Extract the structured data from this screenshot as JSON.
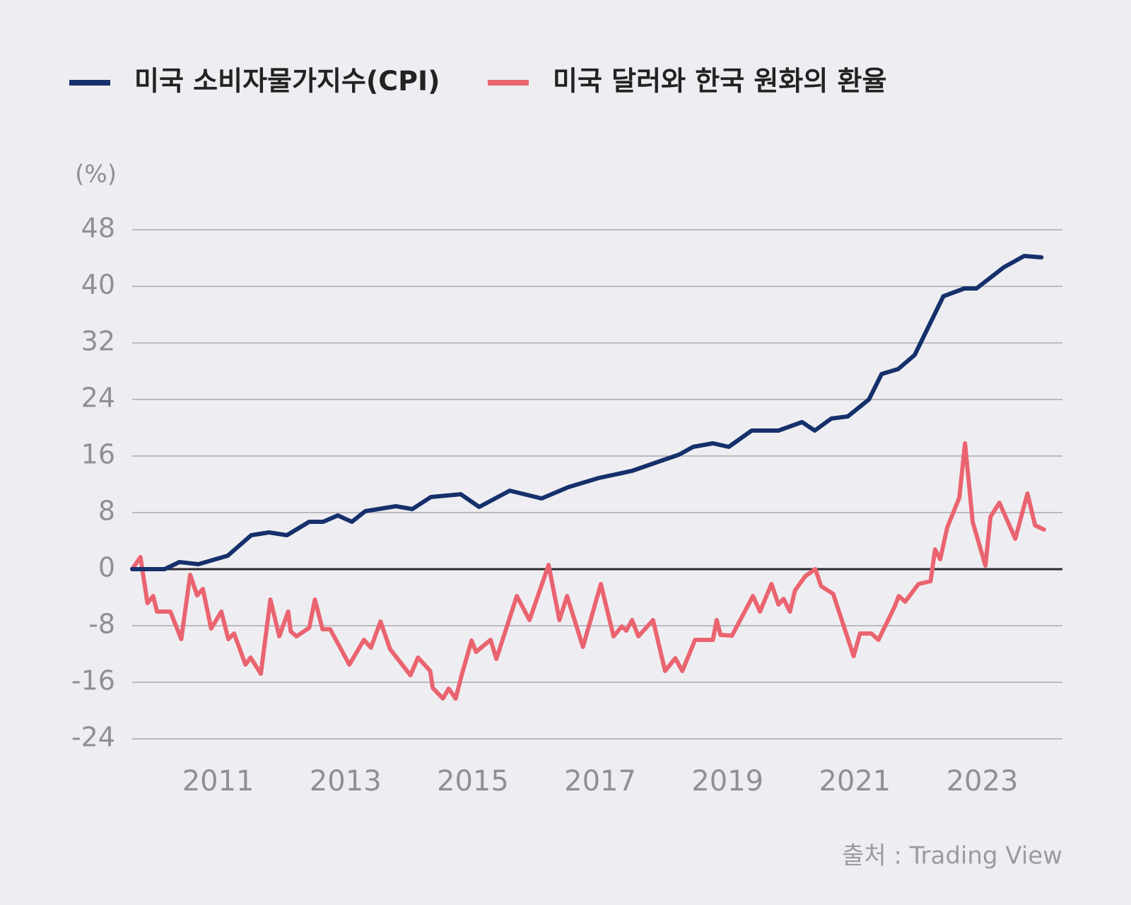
{
  "chart_data": {
    "type": "line",
    "y_unit_label": "(%)",
    "source": "출처 : Trading View",
    "xlim": [
      2009.65,
      2024.26
    ],
    "xticks": [
      2011,
      2013,
      2015,
      2017,
      2019,
      2021,
      2023
    ],
    "ylim": [
      -24,
      48
    ],
    "yticks": [
      -24,
      -16,
      -8,
      0,
      8,
      16,
      24,
      32,
      40,
      48
    ],
    "grid": true,
    "legend": "top",
    "series": [
      {
        "name": "미국 소비자물가지수(CPI)",
        "color": "#15306b",
        "x": [
          2009.65,
          2010.16,
          2010.39,
          2010.69,
          2011.15,
          2011.52,
          2011.8,
          2012.08,
          2012.43,
          2012.65,
          2012.88,
          2013.1,
          2013.31,
          2013.79,
          2014.05,
          2014.34,
          2014.81,
          2015.1,
          2015.58,
          2016.08,
          2016.5,
          2016.98,
          2017.5,
          2017.98,
          2018.24,
          2018.46,
          2018.77,
          2019.02,
          2019.38,
          2019.8,
          2020.17,
          2020.37,
          2020.63,
          2020.89,
          2021.22,
          2021.42,
          2021.68,
          2021.94,
          2022.39,
          2022.72,
          2022.91,
          2023.34,
          2023.66,
          2023.93
        ],
        "values": [
          0,
          0,
          1,
          0.7,
          1.9,
          4.8,
          5.2,
          4.8,
          6.7,
          6.7,
          7.6,
          6.7,
          8.2,
          8.9,
          8.5,
          10.2,
          10.6,
          8.8,
          11.1,
          10,
          11.6,
          12.9,
          13.9,
          15.4,
          16.2,
          17.3,
          17.8,
          17.3,
          19.6,
          19.6,
          20.8,
          19.6,
          21.3,
          21.6,
          24,
          27.6,
          28.3,
          30.3,
          38.6,
          39.7,
          39.7,
          42.7,
          44.3,
          44.1
        ]
      },
      {
        "name": "미국 달러와 한국 원화의 환율",
        "color": "#ea6470",
        "x": [
          2009.65,
          2009.78,
          2009.89,
          2009.98,
          2010.04,
          2010.25,
          2010.42,
          2010.56,
          2010.67,
          2010.76,
          2010.89,
          2011.05,
          2011.16,
          2011.25,
          2011.43,
          2011.51,
          2011.67,
          2011.82,
          2011.96,
          2012.1,
          2012.14,
          2012.23,
          2012.43,
          2012.52,
          2012.64,
          2012.76,
          2013.06,
          2013.29,
          2013.4,
          2013.55,
          2013.7,
          2014.02,
          2014.14,
          2014.33,
          2014.37,
          2014.53,
          2014.62,
          2014.73,
          2014.83,
          2014.98,
          2015.05,
          2015.28,
          2015.37,
          2015.69,
          2015.89,
          2016.19,
          2016.36,
          2016.48,
          2016.73,
          2017.01,
          2017.21,
          2017.34,
          2017.41,
          2017.5,
          2017.6,
          2017.83,
          2018.02,
          2018.18,
          2018.29,
          2018.49,
          2018.77,
          2018.83,
          2018.89,
          2019.07,
          2019.4,
          2019.51,
          2019.69,
          2019.8,
          2019.88,
          2019.98,
          2020.06,
          2020.22,
          2020.38,
          2020.47,
          2020.66,
          2020.98,
          2021.08,
          2021.26,
          2021.37,
          2021.62,
          2021.69,
          2021.79,
          2022.0,
          2022.19,
          2022.26,
          2022.34,
          2022.45,
          2022.64,
          2022.73,
          2022.85,
          2023.05,
          2023.13,
          2023.27,
          2023.52,
          2023.71,
          2023.83,
          2023.97
        ],
        "values": [
          0,
          1.7,
          -4.8,
          -3.8,
          -6,
          -6,
          -9.9,
          -0.8,
          -3.7,
          -2.8,
          -8.4,
          -6,
          -9.9,
          -9.1,
          -13.5,
          -12.5,
          -14.8,
          -4.3,
          -9.5,
          -6,
          -8.8,
          -9.5,
          -8.3,
          -4.3,
          -8.5,
          -8.5,
          -13.5,
          -10,
          -11.1,
          -7.4,
          -11.3,
          -15,
          -12.5,
          -14.4,
          -16.8,
          -18.3,
          -16.9,
          -18.3,
          -14.8,
          -10.1,
          -11.7,
          -10,
          -12.7,
          -3.8,
          -7.2,
          0.6,
          -7.2,
          -3.8,
          -11,
          -2.1,
          -9.5,
          -8.1,
          -8.7,
          -7.2,
          -9.5,
          -7.2,
          -14.4,
          -12.6,
          -14.4,
          -10,
          -10,
          -7.2,
          -9.3,
          -9.4,
          -3.8,
          -6,
          -2.1,
          -5,
          -4.2,
          -6,
          -3,
          -1,
          0,
          -2.4,
          -3.5,
          -12.3,
          -9.1,
          -9.1,
          -10,
          -5.4,
          -3.8,
          -4.6,
          -2.1,
          -1.7,
          2.8,
          1.4,
          5.9,
          10.1,
          17.8,
          6.7,
          0.5,
          7.4,
          9.4,
          4.3,
          10.7,
          6.2,
          5.6
        ]
      }
    ]
  }
}
